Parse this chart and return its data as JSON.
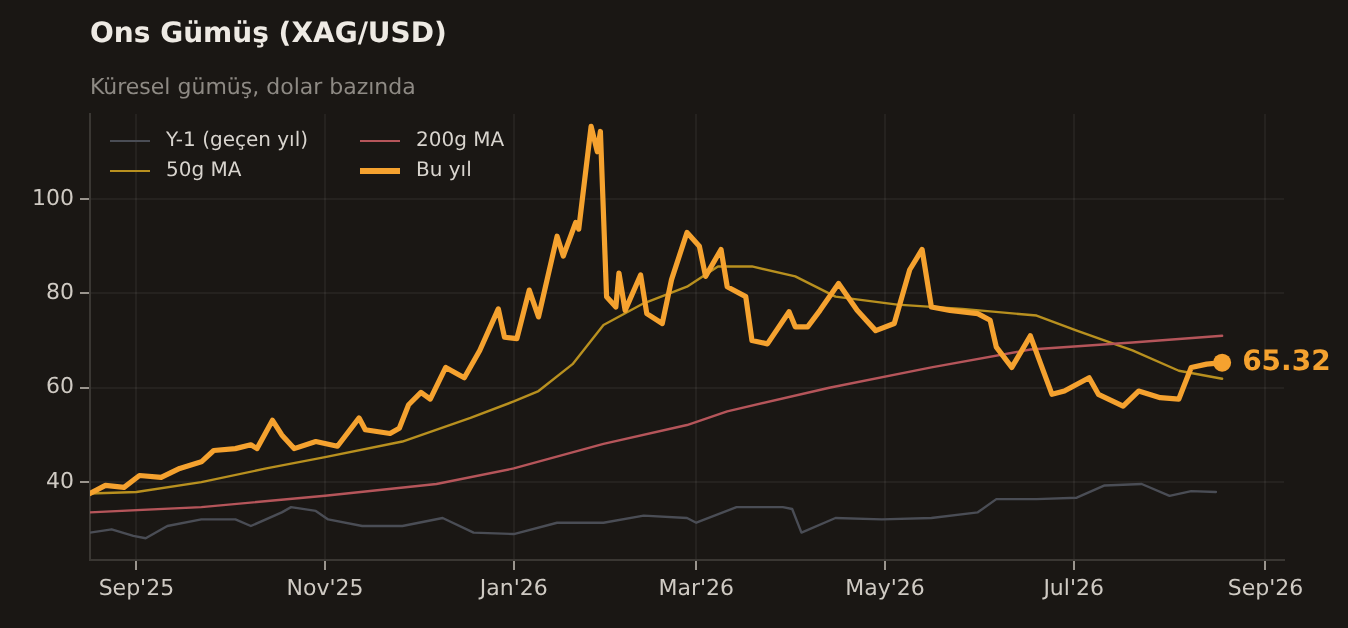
{
  "chart_data": {
    "type": "line",
    "title": "Ons Gümüş (XAG/USD)",
    "subtitle": "Küresel gümüş, dolar bazında",
    "xlim": [
      "2025-08-17",
      "2026-09-07"
    ],
    "xticks": [
      {
        "value": "2025-09-01",
        "label": "Sep'25"
      },
      {
        "value": "2025-11-01",
        "label": "Nov'25"
      },
      {
        "value": "2026-01-01",
        "label": "Jan'26"
      },
      {
        "value": "2026-03-01",
        "label": "Mar'26"
      },
      {
        "value": "2026-05-01",
        "label": "May'26"
      },
      {
        "value": "2026-07-01",
        "label": "Jul'26"
      },
      {
        "value": "2026-09-01",
        "label": "Sep'26"
      }
    ],
    "ylim": [
      23.5,
      118
    ],
    "yticks": [
      40,
      60,
      80,
      100
    ],
    "grid": true,
    "legend": "top left",
    "marker": "none",
    "annotations": [
      {
        "text": "65.32",
        "x": "2026-08-18",
        "y": 65.32
      }
    ],
    "series": [
      {
        "name": "Y-1 (geçen yıl)",
        "color": "#4a4d55",
        "x": [
          "2025-08-17",
          "2025-08-24",
          "2025-08-31",
          "2025-09-04",
          "2025-09-11",
          "2025-09-22",
          "2025-10-03",
          "2025-10-08",
          "2025-10-18",
          "2025-10-21",
          "2025-10-29",
          "2025-11-02",
          "2025-11-13",
          "2025-11-26",
          "2025-12-09",
          "2025-12-19",
          "2026-01-01",
          "2026-01-15",
          "2026-01-30",
          "2026-02-12",
          "2026-02-26",
          "2026-03-01",
          "2026-03-14",
          "2026-03-29",
          "2026-04-01",
          "2026-04-04",
          "2026-04-15",
          "2026-04-30",
          "2026-05-16",
          "2026-05-31",
          "2026-06-06",
          "2026-06-19",
          "2026-07-02",
          "2026-07-11",
          "2026-07-23",
          "2026-08-01",
          "2026-08-08",
          "2026-08-16"
        ],
        "values": [
          29.3,
          30.0,
          28.6,
          28.1,
          30.7,
          32.1,
          32.1,
          30.7,
          33.6,
          34.7,
          33.9,
          32.1,
          30.7,
          30.7,
          32.4,
          29.3,
          29.0,
          31.4,
          31.4,
          32.9,
          32.4,
          31.4,
          34.7,
          34.7,
          34.3,
          29.3,
          32.4,
          32.1,
          32.4,
          33.6,
          36.4,
          36.4,
          36.7,
          39.3,
          39.6,
          37.1,
          38.1,
          37.9
        ]
      },
      {
        "name": "50g MA",
        "color": "#b8901f",
        "x": [
          "2025-08-17",
          "2025-09-01",
          "2025-09-22",
          "2025-10-13",
          "2025-11-01",
          "2025-11-26",
          "2025-12-18",
          "2026-01-01",
          "2026-01-09",
          "2026-01-20",
          "2026-01-30",
          "2026-02-12",
          "2026-02-26",
          "2026-03-08",
          "2026-03-19",
          "2026-04-02",
          "2026-04-15",
          "2026-05-05",
          "2026-05-26",
          "2026-06-19",
          "2026-07-02",
          "2026-07-20",
          "2026-08-04",
          "2026-08-18"
        ],
        "values": [
          37.6,
          37.9,
          40.0,
          42.9,
          45.3,
          48.6,
          53.6,
          57.1,
          59.3,
          65.0,
          73.3,
          77.9,
          81.4,
          85.7,
          85.7,
          83.6,
          79.3,
          77.6,
          76.7,
          75.3,
          72.1,
          67.9,
          63.6,
          61.9
        ]
      },
      {
        "name": "200g MA",
        "color": "#b5555a",
        "x": [
          "2025-08-17",
          "2025-09-22",
          "2025-11-01",
          "2025-12-07",
          "2026-01-01",
          "2026-01-30",
          "2026-02-26",
          "2026-03-11",
          "2026-04-13",
          "2026-05-16",
          "2026-06-17",
          "2026-07-20",
          "2026-08-18"
        ],
        "values": [
          33.6,
          34.7,
          37.1,
          39.6,
          42.9,
          48.1,
          52.1,
          55.0,
          60.0,
          64.3,
          68.1,
          69.6,
          71.0
        ]
      },
      {
        "name": "Bu yıl",
        "color": "#f5a22f",
        "x": [
          "2025-08-17",
          "2025-08-22",
          "2025-08-28",
          "2025-09-02",
          "2025-09-09",
          "2025-09-15",
          "2025-09-22",
          "2025-09-26",
          "2025-10-03",
          "2025-10-08",
          "2025-10-10",
          "2025-10-15",
          "2025-10-18",
          "2025-10-22",
          "2025-10-29",
          "2025-11-05",
          "2025-11-12",
          "2025-11-14",
          "2025-11-22",
          "2025-11-25",
          "2025-11-28",
          "2025-12-02",
          "2025-12-05",
          "2025-12-10",
          "2025-12-16",
          "2025-12-21",
          "2025-12-27",
          "2025-12-29",
          "2026-01-02",
          "2026-01-06",
          "2026-01-09",
          "2026-01-15",
          "2026-01-17",
          "2026-01-21",
          "2026-01-22",
          "2026-01-26",
          "2026-01-28",
          "2026-01-29",
          "2026-01-31",
          "2026-02-03",
          "2026-02-04",
          "2026-02-06",
          "2026-02-11",
          "2026-02-13",
          "2026-02-18",
          "2026-02-21",
          "2026-02-26",
          "2026-03-02",
          "2026-03-04",
          "2026-03-09",
          "2026-03-11",
          "2026-03-17",
          "2026-03-19",
          "2026-03-24",
          "2026-03-31",
          "2026-04-02",
          "2026-04-06",
          "2026-04-10",
          "2026-04-16",
          "2026-04-22",
          "2026-04-28",
          "2026-05-04",
          "2026-05-09",
          "2026-05-13",
          "2026-05-16",
          "2026-05-22",
          "2026-05-31",
          "2026-06-04",
          "2026-06-06",
          "2026-06-11",
          "2026-06-17",
          "2026-06-24",
          "2026-06-28",
          "2026-07-06",
          "2026-07-09",
          "2026-07-17",
          "2026-07-22",
          "2026-07-29",
          "2026-08-04",
          "2026-08-08",
          "2026-08-13",
          "2026-08-18"
        ],
        "values": [
          37.6,
          39.3,
          38.9,
          41.4,
          41.0,
          42.9,
          44.3,
          46.7,
          47.1,
          47.9,
          47.1,
          53.1,
          50.0,
          47.1,
          48.6,
          47.6,
          53.6,
          51.1,
          50.3,
          51.4,
          56.4,
          59.0,
          57.6,
          64.3,
          62.1,
          67.9,
          76.7,
          70.7,
          70.4,
          80.7,
          75.0,
          92.1,
          87.9,
          95.0,
          93.6,
          115.4,
          110.0,
          114.3,
          79.3,
          77.1,
          84.3,
          76.4,
          83.9,
          75.7,
          73.6,
          82.9,
          92.9,
          90.0,
          83.6,
          89.3,
          81.4,
          79.3,
          70.0,
          69.3,
          76.1,
          72.9,
          72.9,
          76.4,
          82.1,
          76.4,
          72.1,
          73.6,
          85.0,
          89.3,
          77.1,
          76.4,
          75.7,
          74.3,
          68.6,
          64.3,
          71.0,
          58.6,
          59.3,
          62.1,
          58.6,
          56.1,
          59.3,
          57.9,
          57.6,
          64.3,
          65.0,
          65.32
        ]
      }
    ]
  }
}
